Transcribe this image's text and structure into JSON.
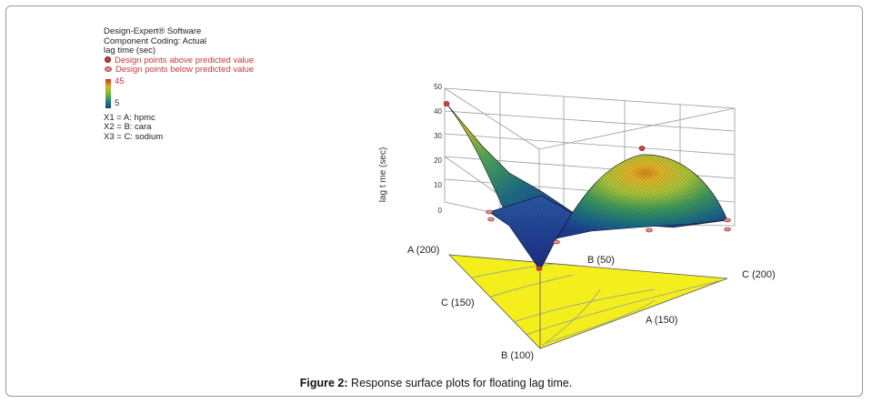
{
  "chart_data": {
    "type": "surface",
    "software": "Design-Expert® Software",
    "coding": "Component Coding: Actual",
    "response": "lag time (sec)",
    "legend": {
      "above": "Design points above predicted value",
      "below": "Design points below predicted value",
      "color_max": "45",
      "color_min": "5",
      "colors": [
        "#c5302a",
        "#e0b020",
        "#6fbf40",
        "#1f8a70",
        "#1a3f9a"
      ]
    },
    "components": [
      "X1 = A: hpmc",
      "X2 = B: cara",
      "X3 = C: sodium"
    ],
    "zlabel": "lag t me (sec)",
    "zticks": [
      "50",
      "40",
      "30",
      "20",
      "10",
      "0"
    ],
    "zlim": [
      0,
      50
    ],
    "vertex_labels": {
      "a_top": "A (200)",
      "b_top": "B (50)",
      "c_top": "C (200)",
      "c_bottom": "C (150)",
      "b_bottom": "B (100)",
      "a_bottom": "A (150)"
    },
    "design_points": [
      {
        "position": "A vertex",
        "value": 44,
        "kind": "above"
      },
      {
        "position": "centre-top",
        "value": 27,
        "kind": "above"
      },
      {
        "position": "left edge",
        "value": 5,
        "kind": "below"
      },
      {
        "position": "left edge",
        "value": 3,
        "kind": "below"
      },
      {
        "position": "centre",
        "value": 1,
        "kind": "below"
      },
      {
        "position": "front vertex",
        "value": 0,
        "kind": "above"
      },
      {
        "position": "right vertex",
        "value": 2,
        "kind": "below"
      },
      {
        "position": "right edge",
        "value": 1,
        "kind": "below"
      }
    ]
  },
  "caption": {
    "label": "Figure 2:",
    "text": "Response surface plots for floating lag time."
  }
}
